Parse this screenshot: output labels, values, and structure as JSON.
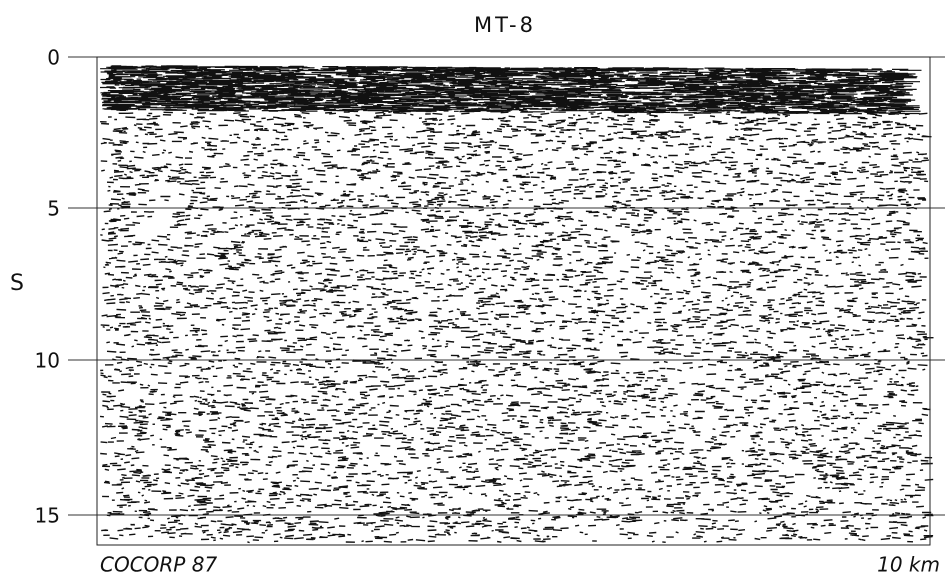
{
  "title": "MT-8",
  "axis": {
    "label": "S",
    "ticks": [
      "0",
      "5",
      "10",
      "15"
    ]
  },
  "footer": {
    "left": "COCORP 87",
    "right": "10 km"
  }
}
